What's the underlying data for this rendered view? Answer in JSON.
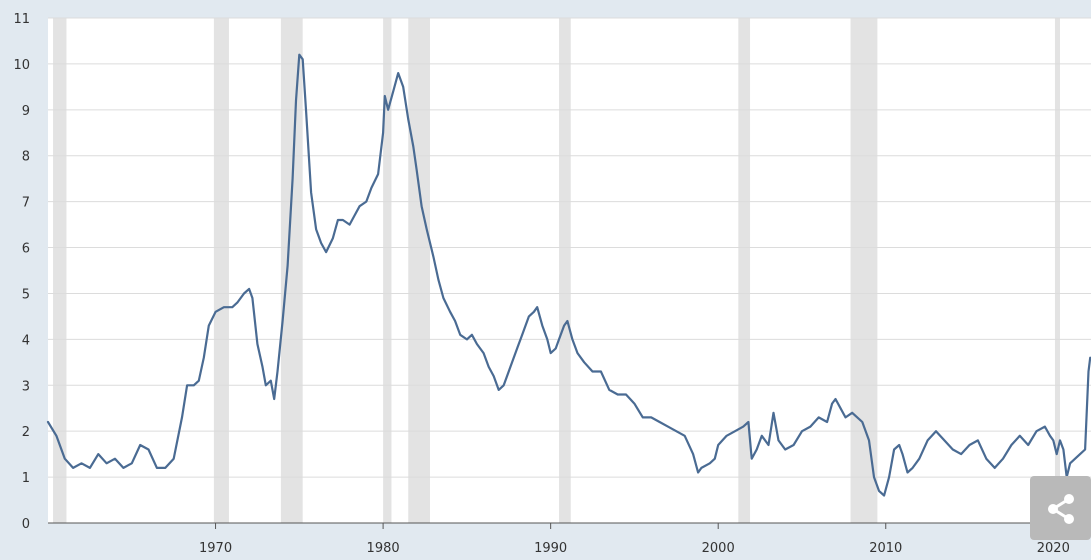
{
  "chart_data": {
    "type": "line",
    "title": "",
    "xlabel": "",
    "ylabel": "",
    "xlim": [
      1960,
      2022.25
    ],
    "ylim": [
      0,
      11
    ],
    "grid": true,
    "x_ticks": [
      "1970",
      "1980",
      "1990",
      "2000",
      "2010",
      "2020"
    ],
    "y_ticks": [
      "0",
      "1",
      "2",
      "3",
      "4",
      "5",
      "6",
      "7",
      "8",
      "9",
      "10",
      "11"
    ],
    "recessions": [
      [
        1960.3,
        1961.1
      ],
      [
        1969.9,
        1970.8
      ],
      [
        1973.9,
        1975.2
      ],
      [
        1980.0,
        1980.5
      ],
      [
        1981.5,
        1982.8
      ],
      [
        1990.5,
        1991.2
      ],
      [
        2001.2,
        2001.9
      ],
      [
        2007.9,
        2009.5
      ],
      [
        2020.1,
        2020.4
      ]
    ],
    "series": [
      {
        "color": "#4a6b93",
        "points": [
          [
            1960.0,
            2.2
          ],
          [
            1960.5,
            1.9
          ],
          [
            1961.0,
            1.4
          ],
          [
            1961.5,
            1.2
          ],
          [
            1962.0,
            1.3
          ],
          [
            1962.5,
            1.2
          ],
          [
            1963.0,
            1.5
          ],
          [
            1963.5,
            1.3
          ],
          [
            1964.0,
            1.4
          ],
          [
            1964.5,
            1.2
          ],
          [
            1965.0,
            1.3
          ],
          [
            1965.5,
            1.7
          ],
          [
            1966.0,
            1.6
          ],
          [
            1966.5,
            1.2
          ],
          [
            1967.0,
            1.2
          ],
          [
            1967.5,
            1.4
          ],
          [
            1968.0,
            2.3
          ],
          [
            1968.3,
            3.0
          ],
          [
            1968.7,
            3.0
          ],
          [
            1969.0,
            3.1
          ],
          [
            1969.3,
            3.6
          ],
          [
            1969.6,
            4.3
          ],
          [
            1970.0,
            4.6
          ],
          [
            1970.5,
            4.7
          ],
          [
            1971.0,
            4.7
          ],
          [
            1971.3,
            4.8
          ],
          [
            1971.7,
            5.0
          ],
          [
            1972.0,
            5.1
          ],
          [
            1972.2,
            4.9
          ],
          [
            1972.5,
            3.9
          ],
          [
            1972.8,
            3.4
          ],
          [
            1973.0,
            3.0
          ],
          [
            1973.3,
            3.1
          ],
          [
            1973.5,
            2.7
          ],
          [
            1973.7,
            3.3
          ],
          [
            1974.0,
            4.4
          ],
          [
            1974.3,
            5.6
          ],
          [
            1974.6,
            7.5
          ],
          [
            1974.8,
            9.2
          ],
          [
            1975.0,
            10.2
          ],
          [
            1975.2,
            10.1
          ],
          [
            1975.4,
            9.0
          ],
          [
            1975.7,
            7.2
          ],
          [
            1976.0,
            6.4
          ],
          [
            1976.3,
            6.1
          ],
          [
            1976.6,
            5.9
          ],
          [
            1977.0,
            6.2
          ],
          [
            1977.3,
            6.6
          ],
          [
            1977.6,
            6.6
          ],
          [
            1978.0,
            6.5
          ],
          [
            1978.3,
            6.7
          ],
          [
            1978.6,
            6.9
          ],
          [
            1979.0,
            7.0
          ],
          [
            1979.3,
            7.3
          ],
          [
            1979.7,
            7.6
          ],
          [
            1980.0,
            8.5
          ],
          [
            1980.1,
            9.3
          ],
          [
            1980.3,
            9.0
          ],
          [
            1980.6,
            9.4
          ],
          [
            1980.9,
            9.8
          ],
          [
            1981.2,
            9.5
          ],
          [
            1981.5,
            8.8
          ],
          [
            1981.8,
            8.2
          ],
          [
            1982.0,
            7.7
          ],
          [
            1982.3,
            6.9
          ],
          [
            1982.6,
            6.4
          ],
          [
            1983.0,
            5.8
          ],
          [
            1983.3,
            5.3
          ],
          [
            1983.6,
            4.9
          ],
          [
            1984.0,
            4.6
          ],
          [
            1984.3,
            4.4
          ],
          [
            1984.6,
            4.1
          ],
          [
            1985.0,
            4.0
          ],
          [
            1985.3,
            4.1
          ],
          [
            1985.6,
            3.9
          ],
          [
            1986.0,
            3.7
          ],
          [
            1986.3,
            3.4
          ],
          [
            1986.6,
            3.2
          ],
          [
            1986.9,
            2.9
          ],
          [
            1987.2,
            3.0
          ],
          [
            1987.6,
            3.4
          ],
          [
            1988.0,
            3.8
          ],
          [
            1988.3,
            4.1
          ],
          [
            1988.7,
            4.5
          ],
          [
            1989.0,
            4.6
          ],
          [
            1989.2,
            4.7
          ],
          [
            1989.5,
            4.3
          ],
          [
            1989.8,
            4.0
          ],
          [
            1990.0,
            3.7
          ],
          [
            1990.3,
            3.8
          ],
          [
            1990.5,
            4.0
          ],
          [
            1990.8,
            4.3
          ],
          [
            1991.0,
            4.4
          ],
          [
            1991.3,
            4.0
          ],
          [
            1991.6,
            3.7
          ],
          [
            1992.0,
            3.5
          ],
          [
            1992.5,
            3.3
          ],
          [
            1993.0,
            3.3
          ],
          [
            1993.5,
            2.9
          ],
          [
            1994.0,
            2.8
          ],
          [
            1994.5,
            2.8
          ],
          [
            1995.0,
            2.6
          ],
          [
            1995.5,
            2.3
          ],
          [
            1996.0,
            2.3
          ],
          [
            1996.5,
            2.2
          ],
          [
            1997.0,
            2.1
          ],
          [
            1997.5,
            2.0
          ],
          [
            1998.0,
            1.9
          ],
          [
            1998.5,
            1.5
          ],
          [
            1998.8,
            1.1
          ],
          [
            1999.0,
            1.2
          ],
          [
            1999.5,
            1.3
          ],
          [
            1999.8,
            1.4
          ],
          [
            2000.0,
            1.7
          ],
          [
            2000.5,
            1.9
          ],
          [
            2001.0,
            2.0
          ],
          [
            2001.5,
            2.1
          ],
          [
            2001.8,
            2.2
          ],
          [
            2002.0,
            1.4
          ],
          [
            2002.3,
            1.6
          ],
          [
            2002.6,
            1.9
          ],
          [
            2003.0,
            1.7
          ],
          [
            2003.3,
            2.4
          ],
          [
            2003.6,
            1.8
          ],
          [
            2004.0,
            1.6
          ],
          [
            2004.5,
            1.7
          ],
          [
            2005.0,
            2.0
          ],
          [
            2005.5,
            2.1
          ],
          [
            2006.0,
            2.3
          ],
          [
            2006.5,
            2.2
          ],
          [
            2006.8,
            2.6
          ],
          [
            2007.0,
            2.7
          ],
          [
            2007.3,
            2.5
          ],
          [
            2007.6,
            2.3
          ],
          [
            2008.0,
            2.4
          ],
          [
            2008.3,
            2.3
          ],
          [
            2008.6,
            2.2
          ],
          [
            2009.0,
            1.8
          ],
          [
            2009.3,
            1.0
          ],
          [
            2009.6,
            0.7
          ],
          [
            2009.9,
            0.6
          ],
          [
            2010.2,
            1.0
          ],
          [
            2010.5,
            1.6
          ],
          [
            2010.8,
            1.7
          ],
          [
            2011.0,
            1.5
          ],
          [
            2011.3,
            1.1
          ],
          [
            2011.6,
            1.2
          ],
          [
            2012.0,
            1.4
          ],
          [
            2012.5,
            1.8
          ],
          [
            2013.0,
            2.0
          ],
          [
            2013.5,
            1.8
          ],
          [
            2014.0,
            1.6
          ],
          [
            2014.5,
            1.5
          ],
          [
            2015.0,
            1.7
          ],
          [
            2015.5,
            1.8
          ],
          [
            2016.0,
            1.4
          ],
          [
            2016.5,
            1.2
          ],
          [
            2017.0,
            1.4
          ],
          [
            2017.5,
            1.7
          ],
          [
            2018.0,
            1.9
          ],
          [
            2018.5,
            1.7
          ],
          [
            2019.0,
            2.0
          ],
          [
            2019.5,
            2.1
          ],
          [
            2019.8,
            1.9
          ],
          [
            2020.0,
            1.8
          ],
          [
            2020.2,
            1.5
          ],
          [
            2020.4,
            1.8
          ],
          [
            2020.6,
            1.6
          ],
          [
            2020.8,
            1.0
          ],
          [
            2021.0,
            1.3
          ],
          [
            2021.3,
            1.4
          ],
          [
            2021.6,
            1.5
          ],
          [
            2021.9,
            1.6
          ],
          [
            2022.1,
            3.3
          ],
          [
            2022.2,
            3.6
          ]
        ]
      }
    ]
  },
  "share_icon": "share-icon"
}
